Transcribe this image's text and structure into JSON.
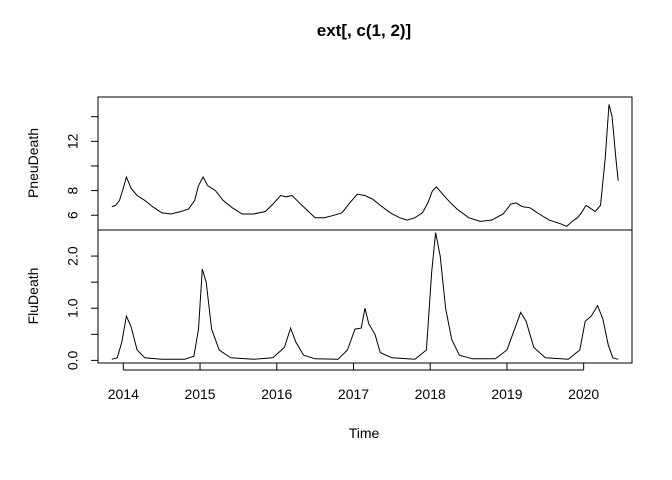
{
  "chart_data": {
    "type": "line",
    "title": "ext[, c(1, 2)]",
    "xlabel": "Time",
    "xlim": [
      2013.67,
      2020.63
    ],
    "x_ticks": [
      "2014",
      "2015",
      "2016",
      "2017",
      "2018",
      "2019",
      "2020"
    ],
    "x_tick_values": [
      2014,
      2015,
      2016,
      2017,
      2018,
      2019,
      2020
    ],
    "panels": [
      {
        "name": "PneuDeath",
        "ylabel": "PneuDeath",
        "ylim": [
          4.8,
          15.6
        ],
        "y_ticks": [
          "6",
          "8",
          "12"
        ],
        "y_tick_values": [
          6,
          8,
          10,
          12,
          14
        ],
        "points": [
          [
            2013.85,
            6.7
          ],
          [
            2013.9,
            6.8
          ],
          [
            2013.95,
            7.2
          ],
          [
            2014.0,
            8.2
          ],
          [
            2014.04,
            9.1
          ],
          [
            2014.1,
            8.2
          ],
          [
            2014.18,
            7.6
          ],
          [
            2014.28,
            7.2
          ],
          [
            2014.38,
            6.7
          ],
          [
            2014.5,
            6.2
          ],
          [
            2014.62,
            6.1
          ],
          [
            2014.75,
            6.3
          ],
          [
            2014.85,
            6.5
          ],
          [
            2014.93,
            7.2
          ],
          [
            2014.98,
            8.4
          ],
          [
            2015.04,
            9.1
          ],
          [
            2015.1,
            8.4
          ],
          [
            2015.2,
            8.0
          ],
          [
            2015.3,
            7.2
          ],
          [
            2015.42,
            6.6
          ],
          [
            2015.55,
            6.1
          ],
          [
            2015.7,
            6.1
          ],
          [
            2015.85,
            6.3
          ],
          [
            2015.95,
            6.9
          ],
          [
            2016.05,
            7.6
          ],
          [
            2016.12,
            7.5
          ],
          [
            2016.2,
            7.6
          ],
          [
            2016.28,
            7.1
          ],
          [
            2016.38,
            6.5
          ],
          [
            2016.5,
            5.8
          ],
          [
            2016.62,
            5.8
          ],
          [
            2016.75,
            6.0
          ],
          [
            2016.85,
            6.2
          ],
          [
            2016.95,
            7.0
          ],
          [
            2017.05,
            7.7
          ],
          [
            2017.15,
            7.6
          ],
          [
            2017.25,
            7.3
          ],
          [
            2017.35,
            6.8
          ],
          [
            2017.48,
            6.2
          ],
          [
            2017.6,
            5.8
          ],
          [
            2017.7,
            5.6
          ],
          [
            2017.8,
            5.8
          ],
          [
            2017.9,
            6.2
          ],
          [
            2017.97,
            7.0
          ],
          [
            2018.03,
            8.0
          ],
          [
            2018.08,
            8.3
          ],
          [
            2018.15,
            7.8
          ],
          [
            2018.25,
            7.1
          ],
          [
            2018.35,
            6.5
          ],
          [
            2018.5,
            5.8
          ],
          [
            2018.65,
            5.5
          ],
          [
            2018.8,
            5.6
          ],
          [
            2018.95,
            6.1
          ],
          [
            2019.05,
            6.9
          ],
          [
            2019.12,
            7.0
          ],
          [
            2019.2,
            6.7
          ],
          [
            2019.3,
            6.6
          ],
          [
            2019.42,
            6.1
          ],
          [
            2019.55,
            5.6
          ],
          [
            2019.7,
            5.3
          ],
          [
            2019.78,
            5.1
          ],
          [
            2019.85,
            5.5
          ],
          [
            2019.92,
            5.8
          ],
          [
            2019.97,
            6.2
          ],
          [
            2020.03,
            6.8
          ],
          [
            2020.08,
            6.6
          ],
          [
            2020.15,
            6.3
          ],
          [
            2020.22,
            6.8
          ],
          [
            2020.28,
            10.5
          ],
          [
            2020.33,
            15.0
          ],
          [
            2020.37,
            14.0
          ],
          [
            2020.42,
            10.6
          ],
          [
            2020.45,
            8.8
          ]
        ]
      },
      {
        "name": "FluDeath",
        "ylabel": "FluDeath",
        "ylim": [
          -0.05,
          2.5
        ],
        "y_ticks": [
          "0.0",
          "1.0",
          "2.0"
        ],
        "y_tick_values": [
          0.0,
          0.5,
          1.0,
          1.5,
          2.0
        ],
        "points": [
          [
            2013.85,
            0.02
          ],
          [
            2013.92,
            0.05
          ],
          [
            2013.98,
            0.35
          ],
          [
            2014.04,
            0.85
          ],
          [
            2014.1,
            0.65
          ],
          [
            2014.18,
            0.2
          ],
          [
            2014.28,
            0.05
          ],
          [
            2014.5,
            0.02
          ],
          [
            2014.8,
            0.02
          ],
          [
            2014.92,
            0.08
          ],
          [
            2014.98,
            0.6
          ],
          [
            2015.03,
            1.75
          ],
          [
            2015.08,
            1.5
          ],
          [
            2015.15,
            0.6
          ],
          [
            2015.25,
            0.2
          ],
          [
            2015.4,
            0.05
          ],
          [
            2015.7,
            0.02
          ],
          [
            2015.95,
            0.05
          ],
          [
            2016.1,
            0.25
          ],
          [
            2016.18,
            0.62
          ],
          [
            2016.25,
            0.35
          ],
          [
            2016.35,
            0.1
          ],
          [
            2016.5,
            0.03
          ],
          [
            2016.8,
            0.02
          ],
          [
            2016.92,
            0.2
          ],
          [
            2017.02,
            0.6
          ],
          [
            2017.1,
            0.62
          ],
          [
            2017.15,
            1.0
          ],
          [
            2017.2,
            0.7
          ],
          [
            2017.28,
            0.5
          ],
          [
            2017.35,
            0.15
          ],
          [
            2017.5,
            0.05
          ],
          [
            2017.8,
            0.02
          ],
          [
            2017.95,
            0.2
          ],
          [
            2018.02,
            1.7
          ],
          [
            2018.07,
            2.45
          ],
          [
            2018.13,
            2.0
          ],
          [
            2018.2,
            1.0
          ],
          [
            2018.28,
            0.4
          ],
          [
            2018.38,
            0.1
          ],
          [
            2018.55,
            0.03
          ],
          [
            2018.85,
            0.03
          ],
          [
            2019.0,
            0.2
          ],
          [
            2019.1,
            0.6
          ],
          [
            2019.18,
            0.92
          ],
          [
            2019.25,
            0.75
          ],
          [
            2019.35,
            0.25
          ],
          [
            2019.5,
            0.05
          ],
          [
            2019.8,
            0.02
          ],
          [
            2019.95,
            0.2
          ],
          [
            2020.02,
            0.75
          ],
          [
            2020.1,
            0.85
          ],
          [
            2020.18,
            1.05
          ],
          [
            2020.25,
            0.8
          ],
          [
            2020.32,
            0.3
          ],
          [
            2020.38,
            0.05
          ],
          [
            2020.45,
            0.02
          ]
        ]
      }
    ]
  }
}
